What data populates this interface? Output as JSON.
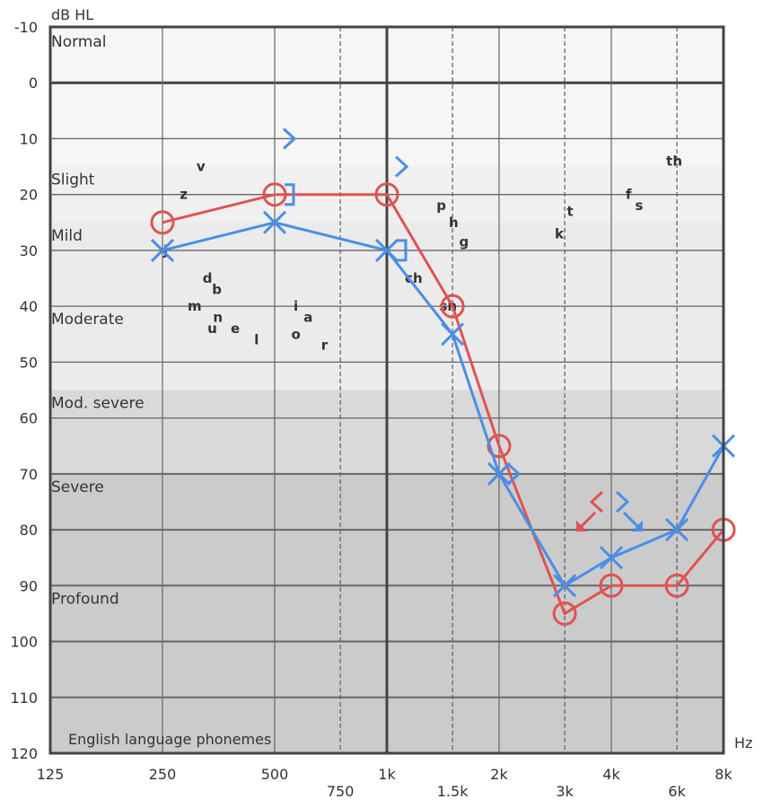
{
  "chart_data": {
    "type": "line",
    "title": "",
    "ylabel": "dB HL",
    "xlabel": "Hz",
    "x_scale": "log2",
    "y_inverted": true,
    "ylim": [
      -10,
      120
    ],
    "xlim": [
      125,
      8000
    ],
    "grid": true,
    "y_ticks": [
      -10,
      0,
      10,
      20,
      30,
      40,
      50,
      60,
      70,
      80,
      90,
      100,
      110,
      120
    ],
    "x_ticks_main": [
      {
        "f": 125,
        "label": "125"
      },
      {
        "f": 250,
        "label": "250"
      },
      {
        "f": 500,
        "label": "500"
      },
      {
        "f": 1000,
        "label": "1k"
      },
      {
        "f": 2000,
        "label": "2k"
      },
      {
        "f": 4000,
        "label": "4k"
      },
      {
        "f": 8000,
        "label": "8k"
      }
    ],
    "x_ticks_inter": [
      {
        "f": 750,
        "label": "750"
      },
      {
        "f": 1500,
        "label": "1.5k"
      },
      {
        "f": 3000,
        "label": "3k"
      },
      {
        "f": 6000,
        "label": "6k"
      }
    ],
    "bands": [
      {
        "label": "Normal",
        "from": -10,
        "to": 15,
        "color": "#f6f6f6"
      },
      {
        "label": "Slight",
        "from": 15,
        "to": 25,
        "color": "#f0f0f0"
      },
      {
        "label": "Mild",
        "from": 25,
        "to": 40,
        "color": "#ebebeb"
      },
      {
        "label": "Moderate",
        "from": 40,
        "to": 55,
        "color": "#ebebeb"
      },
      {
        "label": "Mod. severe",
        "from": 55,
        "to": 70,
        "color": "#d9d9d9"
      },
      {
        "label": "Severe",
        "from": 70,
        "to": 90,
        "color": "#cbcbcb"
      },
      {
        "label": "Profound",
        "from": 90,
        "to": 120,
        "color": "#cbcbcb"
      }
    ],
    "phoneme_caption": "English language phonemes",
    "phonemes": [
      {
        "t": "v",
        "f": 317,
        "db": 15
      },
      {
        "t": "z",
        "f": 285,
        "db": 20
      },
      {
        "t": "j",
        "f": 255,
        "db": 30
      },
      {
        "t": "d",
        "f": 330,
        "db": 35
      },
      {
        "t": "b",
        "f": 350,
        "db": 37
      },
      {
        "t": "m",
        "f": 305,
        "db": 40
      },
      {
        "t": "n",
        "f": 352,
        "db": 42
      },
      {
        "t": "u",
        "f": 340,
        "db": 44
      },
      {
        "t": "e",
        "f": 392,
        "db": 44
      },
      {
        "t": "l",
        "f": 447,
        "db": 46
      },
      {
        "t": "i",
        "f": 570,
        "db": 40
      },
      {
        "t": "a",
        "f": 615,
        "db": 42
      },
      {
        "t": "o",
        "f": 570,
        "db": 45
      },
      {
        "t": "r",
        "f": 680,
        "db": 47
      },
      {
        "t": "p",
        "f": 1400,
        "db": 22
      },
      {
        "t": "h",
        "f": 1510,
        "db": 25
      },
      {
        "t": "g",
        "f": 1610,
        "db": 28.5
      },
      {
        "t": "ch",
        "f": 1180,
        "db": 35
      },
      {
        "t": "sh",
        "f": 1460,
        "db": 40
      },
      {
        "t": "k",
        "f": 2900,
        "db": 27
      },
      {
        "t": "t",
        "f": 3100,
        "db": 23
      },
      {
        "t": "f",
        "f": 4450,
        "db": 20
      },
      {
        "t": "s",
        "f": 4750,
        "db": 22
      },
      {
        "t": "th",
        "f": 5900,
        "db": 14
      }
    ],
    "series": [
      {
        "ear": "right",
        "type": "air",
        "symbol": "O",
        "color": "#e05252",
        "x": [
          250,
          500,
          1000,
          1500,
          2000,
          3000,
          4000,
          6000,
          8000
        ],
        "y": [
          25,
          20,
          20,
          40,
          65,
          95,
          90,
          90,
          80
        ]
      },
      {
        "ear": "left",
        "type": "air",
        "symbol": "X",
        "color": "#4a8ee6",
        "x": [
          250,
          500,
          1000,
          1500,
          2000,
          3000,
          4000,
          6000,
          8000
        ],
        "y": [
          30,
          25,
          30,
          45,
          70,
          90,
          85,
          80,
          65
        ]
      }
    ],
    "bone": [
      {
        "ear": "left",
        "symbol": ">",
        "f": 500,
        "db": 10,
        "color": "#4a8ee6"
      },
      {
        "ear": "left",
        "symbol": ">",
        "f": 1000,
        "db": 15,
        "color": "#4a8ee6"
      },
      {
        "ear": "left",
        "symbol": "]",
        "f": 500,
        "db": 20,
        "color": "#4a8ee6"
      },
      {
        "ear": "left",
        "symbol": "]",
        "f": 1000,
        "db": 30,
        "color": "#4a8ee6"
      },
      {
        "ear": "left",
        "symbol": ">",
        "f": 2000,
        "db": 70,
        "color": "#4a8ee6"
      },
      {
        "ear": "right",
        "symbol": "<",
        "f": 4000,
        "db": 75,
        "color": "#e05252",
        "no_response": true
      },
      {
        "ear": "left",
        "symbol": ">",
        "f": 4000,
        "db": 75,
        "color": "#4a8ee6",
        "no_response": true
      }
    ]
  }
}
